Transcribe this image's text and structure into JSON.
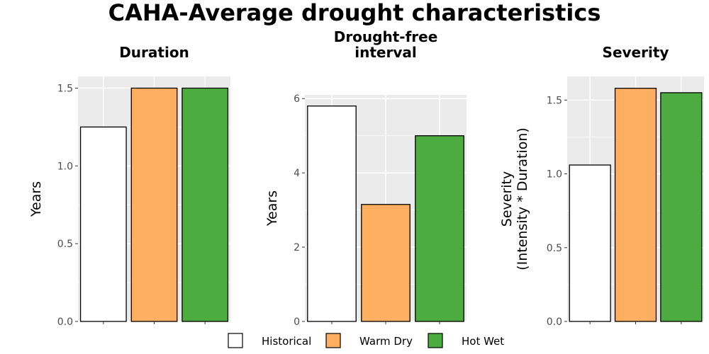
{
  "title": "CAHA-Average drought characteristics",
  "colors": {
    "panel_bg": "#EBEBEB",
    "grid": "#FFFFFF",
    "bar_stroke": "#000000",
    "tick_text": "#4D4D4D"
  },
  "legend": [
    {
      "label": "Historical",
      "color": "#FFFFFF"
    },
    {
      "label": "Warm Dry",
      "color": "#FDAE61"
    },
    {
      "label": "Hot Wet",
      "color": "#4DAC3F"
    }
  ],
  "chart_data": [
    {
      "type": "bar",
      "title_lines": [
        "Duration"
      ],
      "ylabel_lines": [
        "Years"
      ],
      "categories": [
        "Historical",
        "Warm Dry",
        "Hot Wet"
      ],
      "values": [
        1.25,
        1.5,
        1.5
      ],
      "ylim": [
        0,
        1.575
      ],
      "yticks": [
        0,
        0.5,
        1.0,
        1.5
      ],
      "ytick_labels": [
        "0.0",
        "0.5",
        "1.0",
        "1.5"
      ],
      "grid": true
    },
    {
      "type": "bar",
      "title_lines": [
        "Drought-free",
        "interval"
      ],
      "ylabel_lines": [
        "Years"
      ],
      "categories": [
        "Historical",
        "Warm Dry",
        "Hot Wet"
      ],
      "values": [
        5.8,
        3.15,
        5.0
      ],
      "ylim": [
        0,
        6.1
      ],
      "yticks": [
        0,
        2,
        4,
        6
      ],
      "ytick_labels": [
        "0",
        "2",
        "4",
        "6"
      ],
      "grid": true
    },
    {
      "type": "bar",
      "title_lines": [
        "Severity"
      ],
      "ylabel_lines": [
        "Severity",
        "(Intensity * Duration)"
      ],
      "categories": [
        "Historical",
        "Warm Dry",
        "Hot Wet"
      ],
      "values": [
        1.06,
        1.58,
        1.55
      ],
      "ylim": [
        0,
        1.66
      ],
      "yticks": [
        0,
        0.5,
        1.0,
        1.5
      ],
      "ytick_labels": [
        "0.0",
        "0.5",
        "1.0",
        "1.5"
      ],
      "grid": true
    }
  ]
}
